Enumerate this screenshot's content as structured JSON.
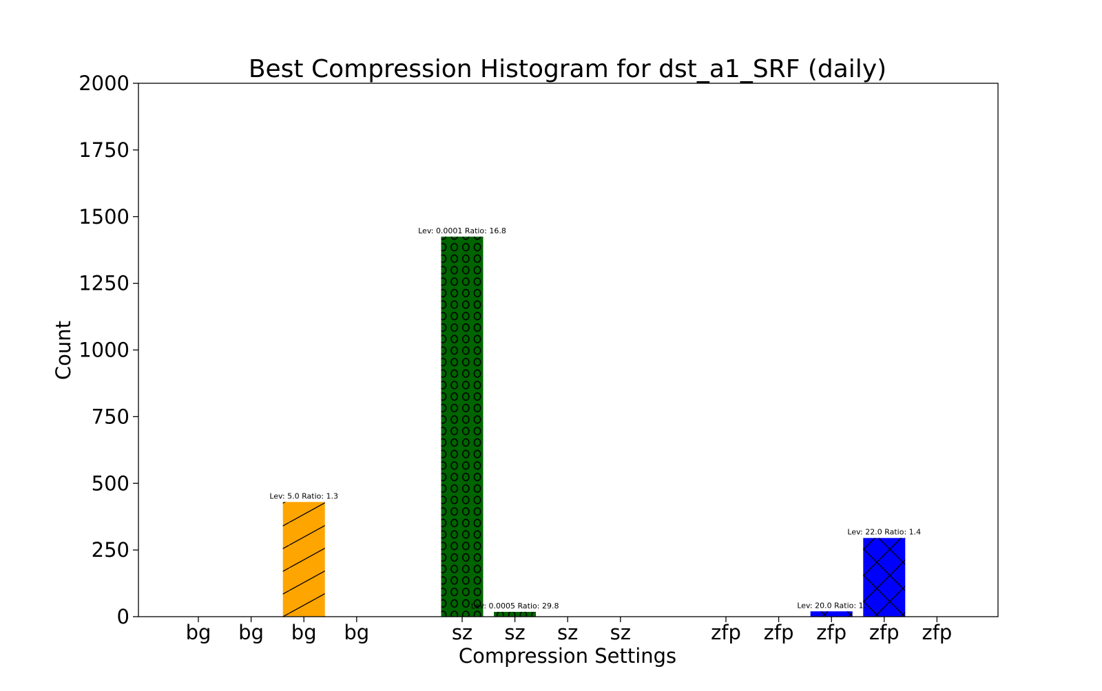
{
  "chart_data": {
    "type": "bar",
    "title": "Best Compression Histogram for dst_a1_SRF (daily)",
    "xlabel": "Compression Settings",
    "ylabel": "Count",
    "ylim": [
      0,
      2000
    ],
    "yticks": [
      0,
      250,
      500,
      750,
      1000,
      1250,
      1500,
      1750,
      2000
    ],
    "grid": false,
    "legend": "none",
    "categories": [
      "bg",
      "bg",
      "bg",
      "bg",
      "sz",
      "sz",
      "sz",
      "sz",
      "zfp",
      "zfp",
      "zfp",
      "zfp",
      "zfp"
    ],
    "slot_positions": [
      0,
      1,
      2,
      3,
      5,
      6,
      7,
      8,
      10,
      11,
      12,
      13,
      14
    ],
    "values": [
      0,
      0,
      430,
      0,
      1425,
      18,
      0,
      0,
      0,
      0,
      20,
      295,
      0
    ],
    "colors": [
      "#ffa500",
      "#ffa500",
      "#ffa500",
      "#ffa500",
      "#006400",
      "#006400",
      "#006400",
      "#006400",
      "#0000ff",
      "#0000ff",
      "#0000ff",
      "#0000ff",
      "#0000ff"
    ],
    "hatches": [
      "diag",
      "diag",
      "diag",
      "diag",
      "circles",
      "circles",
      "circles",
      "circles",
      "cross",
      "cross",
      "cross",
      "cross",
      "cross"
    ],
    "annotations": [
      {
        "index": 2,
        "text": "Lev: 5.0 Ratio: 1.3"
      },
      {
        "index": 4,
        "text": "Lev: 0.0001 Ratio: 16.8"
      },
      {
        "index": 5,
        "text": "Lev: 0.0005 Ratio: 29.8"
      },
      {
        "index": 10,
        "text": "Lev: 20.0 Ratio: 1."
      },
      {
        "index": 11,
        "text": "Lev: 22.0 Ratio: 1.4"
      }
    ]
  }
}
